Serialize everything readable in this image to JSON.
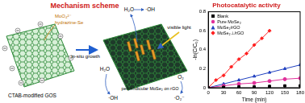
{
  "scheme": {
    "title": "Mechanism scheme",
    "precursor": "MoO₄²⁻",
    "reductant": "hydrazine-Se",
    "step": "in-situ growth",
    "substrate": "CTAB-modified GOS",
    "light": "visible light",
    "product": "perpendicular MoSe₂ on rGO",
    "species": [
      "H₂O",
      "·OH",
      "H₂O",
      "·OH",
      "O₂",
      "·O₂⁻"
    ]
  },
  "chart_data": {
    "type": "scatter",
    "title": "Photocatalytic activity",
    "x_label": "Time (min)",
    "y_label": "-ln(C/C₀)",
    "xlim": [
      0,
      180
    ],
    "xticks": [
      0,
      30,
      60,
      90,
      120,
      150,
      180
    ],
    "ylim": [
      0,
      0.8
    ],
    "yticks": [
      0,
      0.2,
      0.4,
      0.6,
      0.8
    ],
    "grid": false,
    "legend": "upper left",
    "series": [
      {
        "name": "Blank",
        "color": "#000000",
        "marker": "square",
        "line_style": "none",
        "x": [
          0,
          30,
          60,
          90,
          120,
          150,
          180
        ],
        "values": [
          0,
          0.005,
          0.01,
          0.01,
          0.015,
          0.02,
          0.02
        ]
      },
      {
        "name": "Pure MoSe₂",
        "color": "#e0309a",
        "marker": "circle",
        "line_style": "solid",
        "x": [
          0,
          30,
          60,
          90,
          120,
          150,
          180
        ],
        "values": [
          0,
          0.02,
          0.04,
          0.05,
          0.07,
          0.09,
          0.1
        ]
      },
      {
        "name": "MoSe₂/rGO",
        "color": "#2040c0",
        "marker": "triangle",
        "line_style": "solid",
        "x": [
          0,
          30,
          60,
          90,
          120,
          150,
          180
        ],
        "values": [
          0,
          0.04,
          0.08,
          0.12,
          0.16,
          0.2,
          0.24
        ]
      },
      {
        "name": "MoSe₂⊥/rGO",
        "color": "#ff2020",
        "marker": "diamond",
        "line_style": "solid",
        "x": [
          0,
          15,
          30,
          45,
          60,
          75,
          90,
          105,
          120
        ],
        "values": [
          0,
          0.08,
          0.13,
          0.22,
          0.3,
          0.36,
          0.45,
          0.52,
          0.6
        ]
      }
    ]
  }
}
